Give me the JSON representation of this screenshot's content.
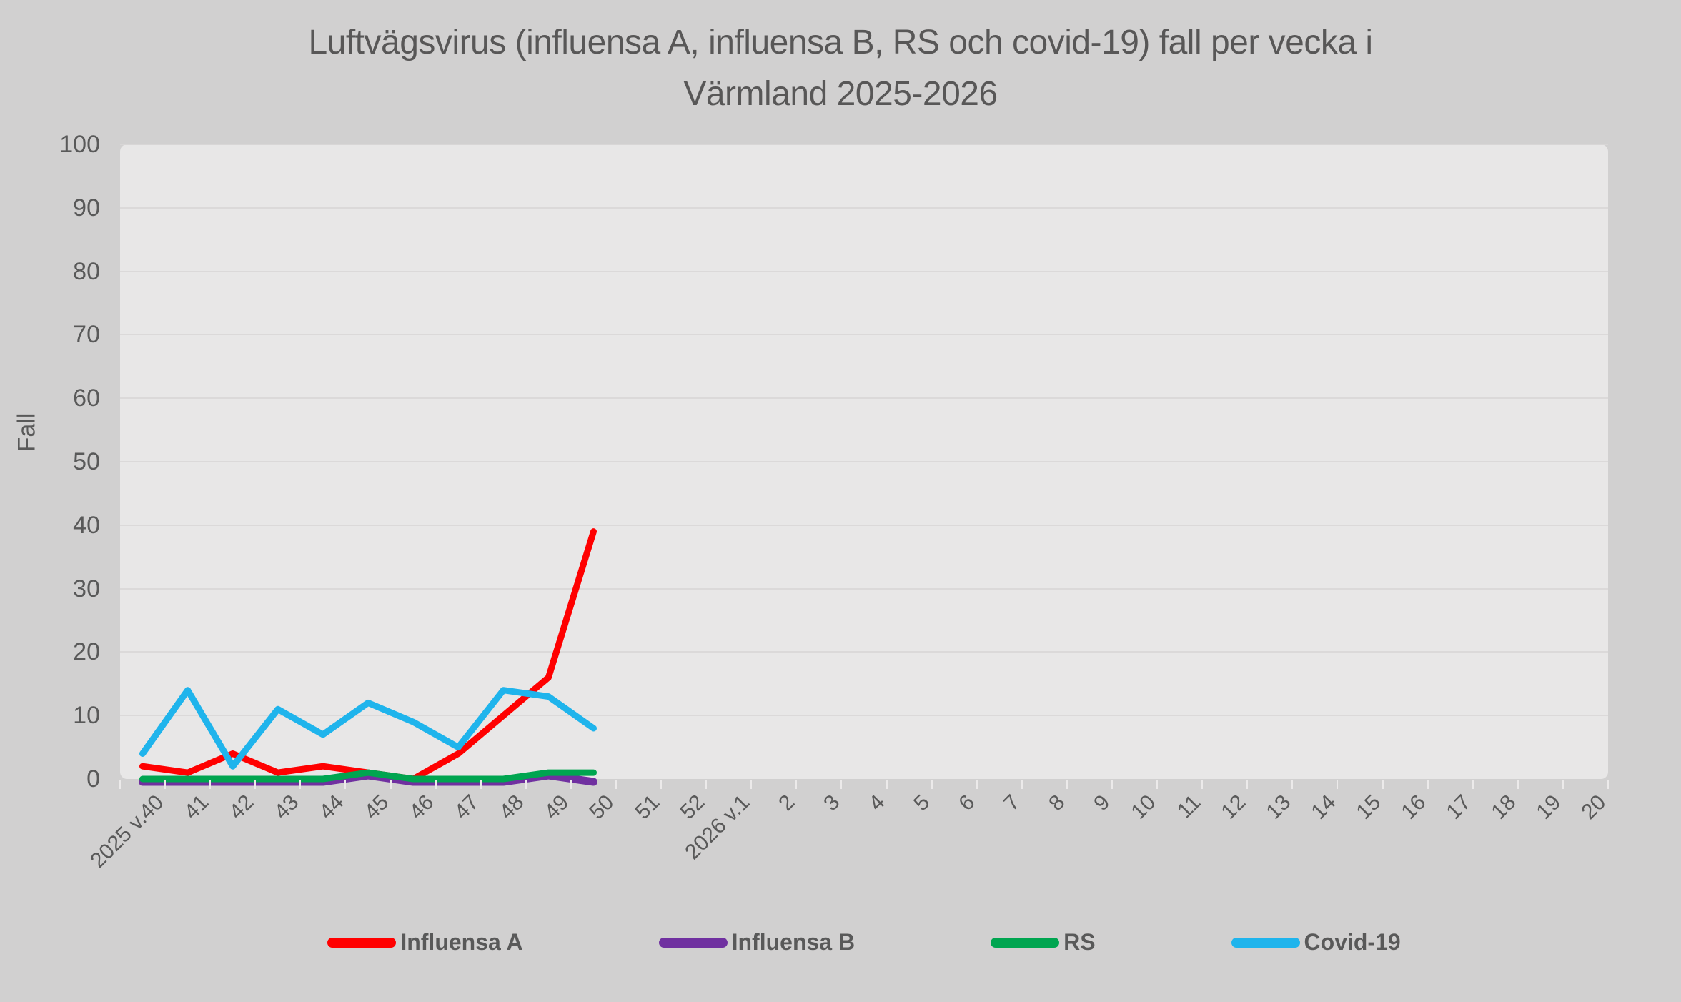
{
  "title": {
    "line1": "Luftvägsvirus (influensa A, influensa B, RS och covid-19) fall per vecka i",
    "line2": "Värmland 2025-2026"
  },
  "y_axis": {
    "label": "Fall",
    "min": 0,
    "max": 100,
    "tick_step": 10
  },
  "colors": {
    "background": "#d1d0d0",
    "plot_background": "#e8e7e7",
    "gridline": "#dbd9d9",
    "tick": "#eceaea",
    "text": "#595959"
  },
  "chart_data": {
    "type": "line",
    "title": "Luftvägsvirus (influensa A, influensa B, RS och covid-19) fall per vecka i Värmland 2025-2026",
    "xlabel": "",
    "ylabel": "Fall",
    "ylim": [
      0,
      100
    ],
    "ytick_step": 10,
    "grid": true,
    "legend_position": "bottom",
    "categories": [
      "2025 v.40",
      "41",
      "42",
      "43",
      "44",
      "45",
      "46",
      "47",
      "48",
      "49",
      "50",
      "51",
      "52",
      "2026 v.1",
      "2",
      "3",
      "4",
      "5",
      "6",
      "7",
      "8",
      "9",
      "10",
      "11",
      "12",
      "13",
      "14",
      "15",
      "16",
      "17",
      "18",
      "19",
      "20"
    ],
    "series": [
      {
        "name": "Influensa A",
        "color": "#ff0000",
        "values": [
          2,
          1,
          4,
          1,
          2,
          1,
          0,
          4,
          10,
          16,
          39
        ]
      },
      {
        "name": "Influensa B",
        "color": "#7030a0",
        "values": [
          0,
          0,
          0,
          0,
          0,
          1,
          0,
          0,
          0,
          1,
          0
        ]
      },
      {
        "name": "RS",
        "color": "#00a550",
        "values": [
          0,
          0,
          0,
          0,
          0,
          1,
          0,
          0,
          0,
          1,
          1
        ]
      },
      {
        "name": "Covid-19",
        "color": "#1fb4ec",
        "values": [
          4,
          14,
          2,
          11,
          7,
          12,
          9,
          5,
          14,
          13,
          8
        ]
      }
    ]
  }
}
